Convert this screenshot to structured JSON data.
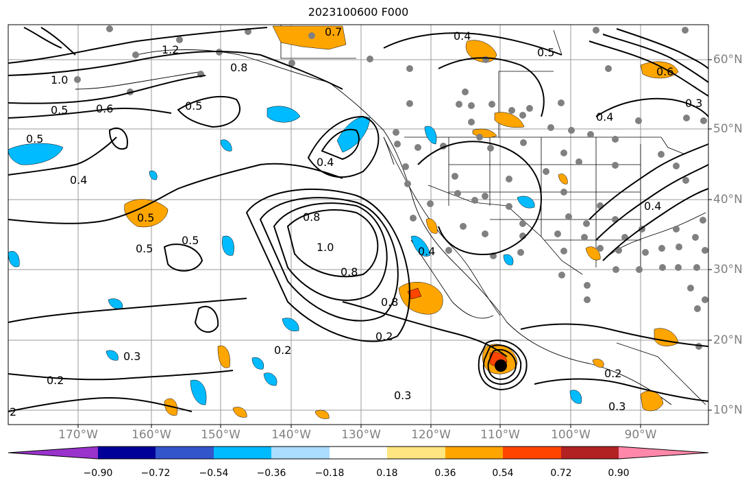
{
  "title": "2023100600 F000",
  "longitude_labels": [
    "170°W",
    "160°W",
    "150°W",
    "140°W",
    "130°W",
    "120°W",
    "110°W",
    "100°W",
    "90°W"
  ],
  "latitude_labels": [
    "60°N",
    "50°N",
    "40°N",
    "30°N",
    "20°N",
    "10°N"
  ],
  "colorbar": {
    "tick_labels": [
      "−0.90",
      "−0.72",
      "−0.54",
      "−0.36",
      "−0.18",
      "0.18",
      "0.36",
      "0.54",
      "0.72",
      "0.90"
    ],
    "colors": [
      "#9933cc",
      "#000099",
      "#3355cc",
      "#00bbff",
      "#aaddff",
      "#ffffff",
      "#ffe680",
      "#ffa500",
      "#ff4400",
      "#b22222",
      "#ff88aa"
    ]
  },
  "contour_labels": [
    {
      "text": "1.0"
    },
    {
      "text": "0.5"
    },
    {
      "text": "0.6"
    },
    {
      "text": "0.5"
    },
    {
      "text": "1.2"
    },
    {
      "text": "0.8"
    },
    {
      "text": "0.7"
    },
    {
      "text": "0.4"
    },
    {
      "text": "0.5"
    },
    {
      "text": "0.5"
    },
    {
      "text": "0.4"
    },
    {
      "text": "0.4"
    },
    {
      "text": "0.5"
    },
    {
      "text": "0.5"
    },
    {
      "text": "0.5"
    },
    {
      "text": "0.8"
    },
    {
      "text": "1.0"
    },
    {
      "text": "0.8"
    },
    {
      "text": "0.8"
    },
    {
      "text": "0.4"
    },
    {
      "text": "0.2"
    },
    {
      "text": "0.3"
    },
    {
      "text": "0.2"
    },
    {
      "text": "0.2"
    },
    {
      "text": "0.3"
    },
    {
      "text": "0.2"
    },
    {
      "text": "0.3"
    },
    {
      "text": "0.6"
    },
    {
      "text": "0.3"
    },
    {
      "text": "0.4"
    },
    {
      "text": "0.4"
    },
    {
      "text": "2"
    }
  ]
}
